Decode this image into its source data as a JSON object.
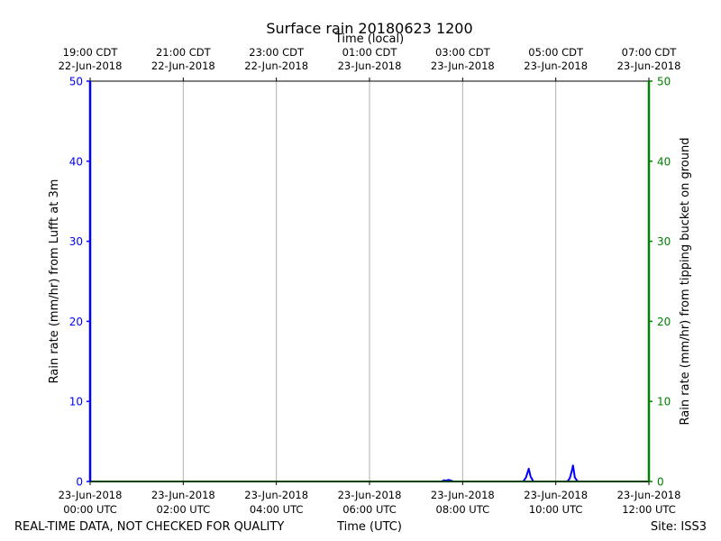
{
  "chart_data": {
    "type": "line",
    "title": "Surface rain 20180623 1200",
    "xlabel": "Time (UTC)",
    "top_xlabel": "Time (local)",
    "ylabel_left": "Rain rate (mm/hr) from Lufft at 3m",
    "ylabel_right": "Rain rate (mm/hr) from tipping bucket on ground",
    "ylim": [
      0,
      50
    ],
    "y_ticks": [
      "0",
      "10",
      "20",
      "30",
      "40",
      "50"
    ],
    "xlim_hours_utc": [
      0,
      12
    ],
    "grid": "vertical",
    "bottom_ticks": [
      {
        "date": "23-Jun-2018",
        "time": "00:00 UTC"
      },
      {
        "date": "23-Jun-2018",
        "time": "02:00 UTC"
      },
      {
        "date": "23-Jun-2018",
        "time": "04:00 UTC"
      },
      {
        "date": "23-Jun-2018",
        "time": "06:00 UTC"
      },
      {
        "date": "23-Jun-2018",
        "time": "08:00 UTC"
      },
      {
        "date": "23-Jun-2018",
        "time": "10:00 UTC"
      },
      {
        "date": "23-Jun-2018",
        "time": "12:00 UTC"
      }
    ],
    "top_ticks": [
      {
        "time": "19:00 CDT",
        "date": "22-Jun-2018"
      },
      {
        "time": "21:00 CDT",
        "date": "22-Jun-2018"
      },
      {
        "time": "23:00 CDT",
        "date": "22-Jun-2018"
      },
      {
        "time": "01:00 CDT",
        "date": "23-Jun-2018"
      },
      {
        "time": "03:00 CDT",
        "date": "23-Jun-2018"
      },
      {
        "time": "05:00 CDT",
        "date": "23-Jun-2018"
      },
      {
        "time": "07:00 CDT",
        "date": "23-Jun-2018"
      }
    ],
    "series": [
      {
        "axis": "left",
        "color": "#0000ff",
        "points": [
          [
            0,
            0
          ],
          [
            7.55,
            0
          ],
          [
            7.6,
            0.15
          ],
          [
            7.65,
            0.1
          ],
          [
            7.7,
            0.2
          ],
          [
            7.75,
            0.1
          ],
          [
            7.8,
            0
          ],
          [
            9.3,
            0
          ],
          [
            9.36,
            0.5
          ],
          [
            9.42,
            1.6
          ],
          [
            9.46,
            0.6
          ],
          [
            9.52,
            0
          ],
          [
            10.25,
            0
          ],
          [
            10.3,
            0.4
          ],
          [
            10.34,
            1.2
          ],
          [
            10.37,
            2.0
          ],
          [
            10.41,
            0.5
          ],
          [
            10.47,
            0
          ],
          [
            12,
            0
          ]
        ]
      },
      {
        "axis": "right",
        "color": "#008000",
        "points": [
          [
            0,
            0
          ],
          [
            12,
            0
          ]
        ]
      }
    ],
    "colors": {
      "left_axis": "#0000ff",
      "right_axis": "#008000",
      "grid": "#b0b0b0"
    }
  },
  "footer": {
    "left": "REAL-TIME DATA, NOT CHECKED FOR QUALITY",
    "center": "Time (UTC)",
    "right": "Site: ISS3"
  }
}
